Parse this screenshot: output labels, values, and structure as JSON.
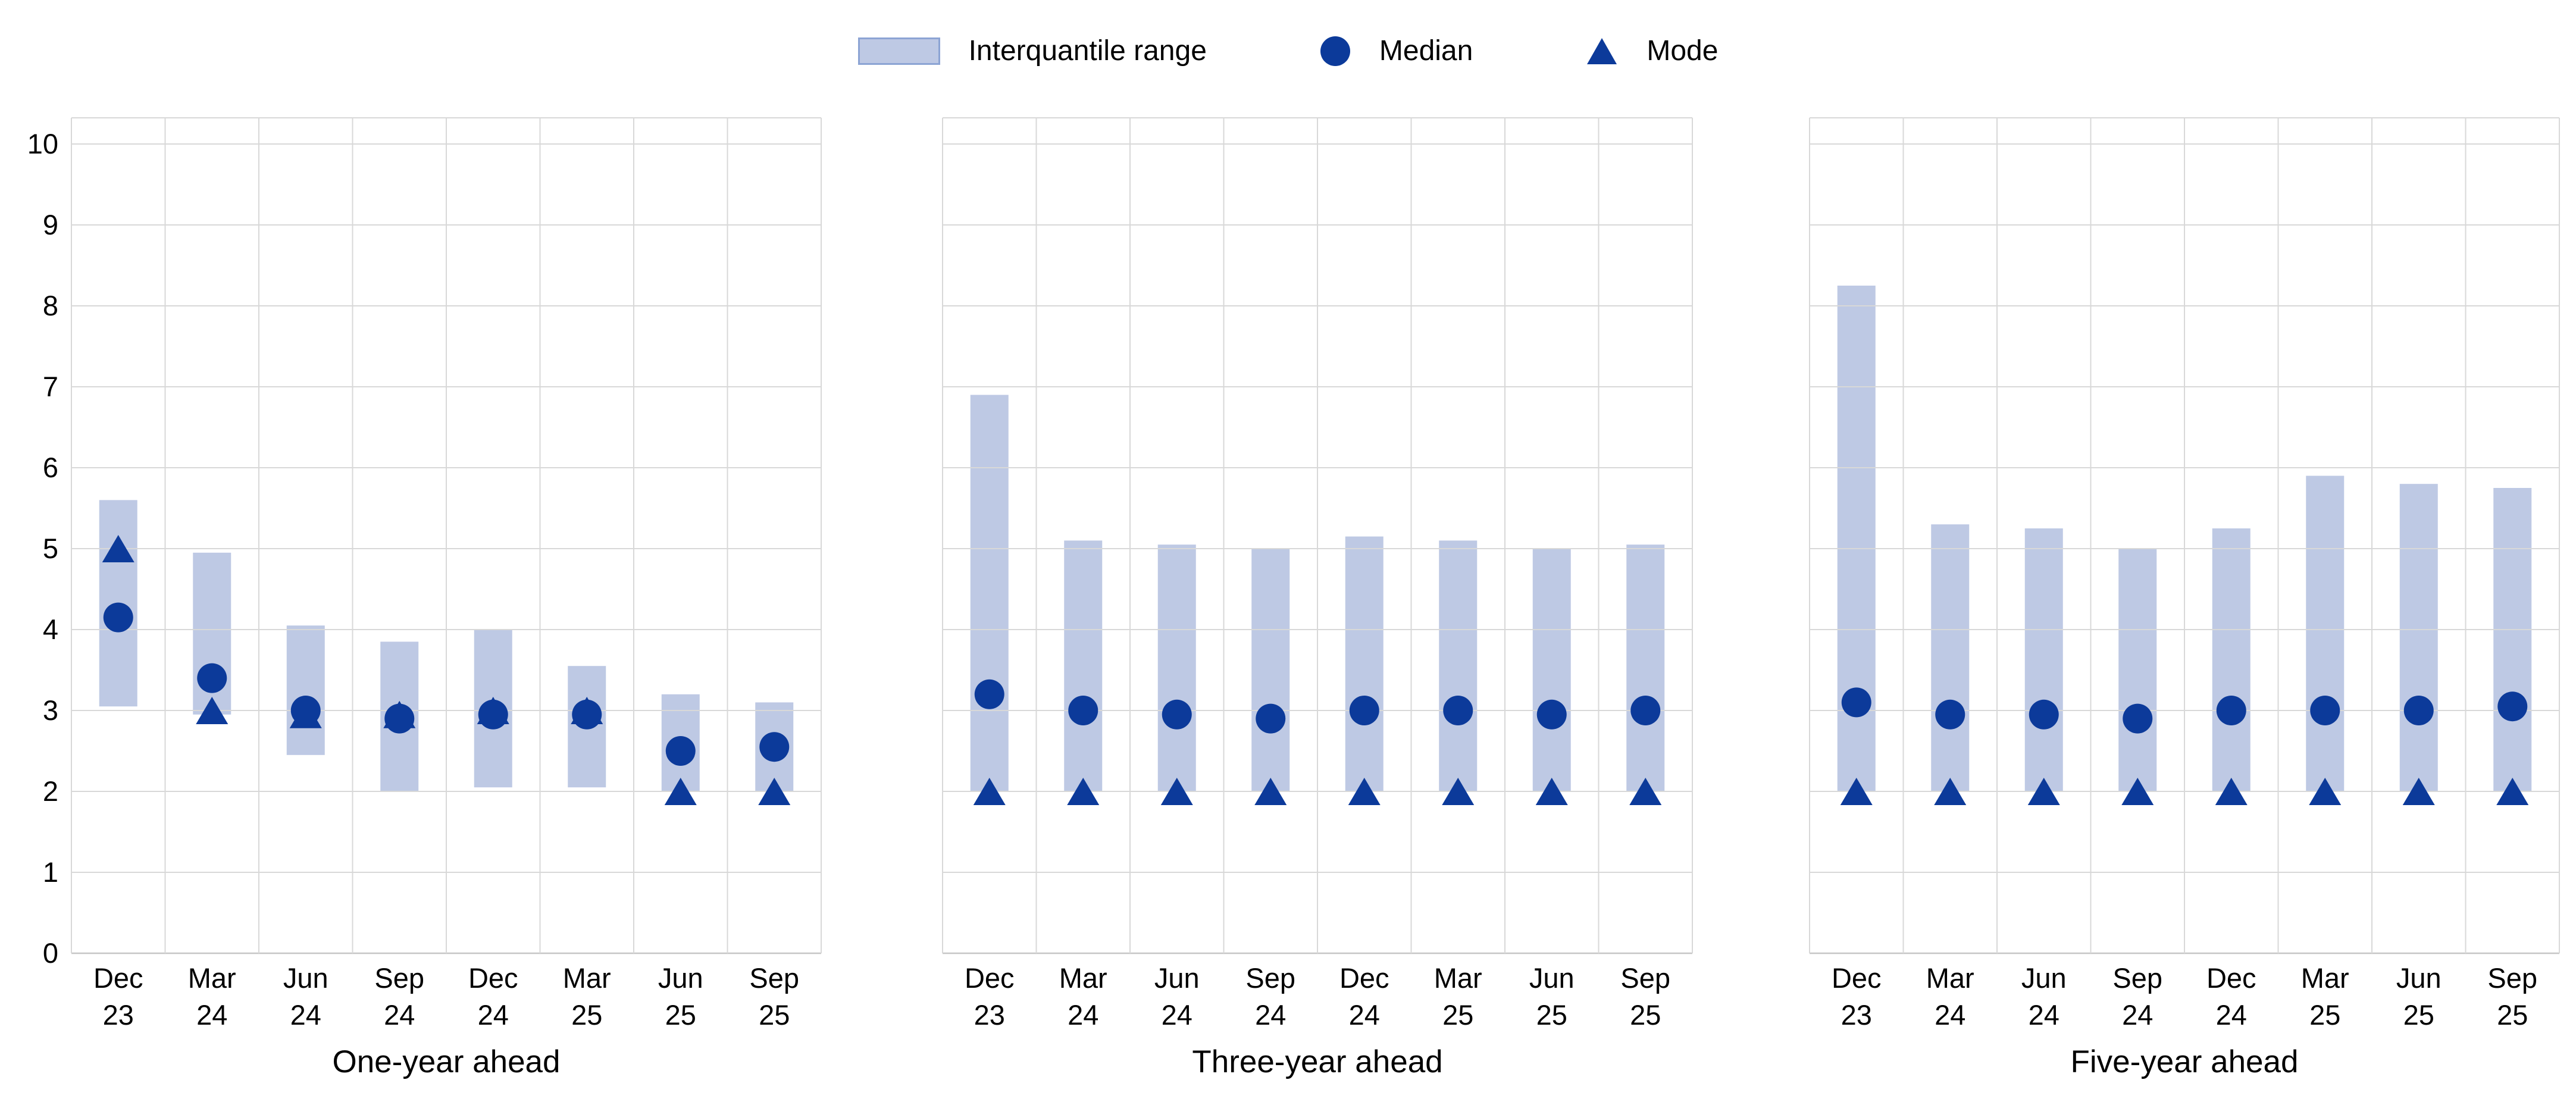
{
  "legend": {
    "items": [
      {
        "label": "Interquantile range",
        "marker": "bar-swatch"
      },
      {
        "label": "Median",
        "marker": "circle"
      },
      {
        "label": "Mode",
        "marker": "triangle"
      }
    ]
  },
  "colors": {
    "bar_fill": "#bec9e4",
    "swatch_border": "#8ca4d4",
    "marker_navy": "#0c3a9a",
    "gridline": "#d8d8d8",
    "zero_line": "#c6c6c6",
    "text": "#000000"
  },
  "y_axis": {
    "min": 0,
    "max": 10,
    "tick_labels": [
      "0",
      "1",
      "2",
      "3",
      "4",
      "5",
      "6",
      "7",
      "8",
      "9",
      "10"
    ]
  },
  "chart_data": [
    {
      "type": "bar",
      "title": "One-year ahead",
      "categories": [
        "Dec 23",
        "Mar 24",
        "Jun 24",
        "Sep 24",
        "Dec 24",
        "Mar 25",
        "Jun 25",
        "Sep 25"
      ],
      "ylim": [
        0,
        10
      ],
      "grid": true,
      "legend_position": "top-center",
      "series": [
        {
          "name": "Interquantile range",
          "type": "range_bar",
          "low": [
            3.05,
            2.95,
            2.45,
            2.0,
            2.05,
            2.05,
            2.0,
            2.0
          ],
          "high": [
            5.6,
            4.95,
            4.05,
            3.85,
            4.0,
            3.55,
            3.2,
            3.1
          ]
        },
        {
          "name": "Median",
          "type": "point_circle",
          "values": [
            4.15,
            3.4,
            3.0,
            2.9,
            2.95,
            2.95,
            2.5,
            2.55
          ]
        },
        {
          "name": "Mode",
          "type": "point_triangle",
          "values": [
            5.0,
            3.0,
            2.95,
            2.95,
            3.0,
            3.0,
            2.0,
            2.0
          ]
        }
      ]
    },
    {
      "type": "bar",
      "title": "Three-year ahead",
      "categories": [
        "Dec 23",
        "Mar 24",
        "Jun 24",
        "Sep 24",
        "Dec 24",
        "Mar 25",
        "Jun 25",
        "Sep 25"
      ],
      "ylim": [
        0,
        10
      ],
      "grid": true,
      "series": [
        {
          "name": "Interquantile range",
          "type": "range_bar",
          "low": [
            2.0,
            2.0,
            2.0,
            2.0,
            2.0,
            2.0,
            2.0,
            2.0
          ],
          "high": [
            6.9,
            5.1,
            5.05,
            5.0,
            5.15,
            5.1,
            5.0,
            5.05
          ]
        },
        {
          "name": "Median",
          "type": "point_circle",
          "values": [
            3.2,
            3.0,
            2.95,
            2.9,
            3.0,
            3.0,
            2.95,
            3.0
          ]
        },
        {
          "name": "Mode",
          "type": "point_triangle",
          "values": [
            2.0,
            2.0,
            2.0,
            2.0,
            2.0,
            2.0,
            2.0,
            2.0
          ]
        }
      ]
    },
    {
      "type": "bar",
      "title": "Five-year ahead",
      "categories": [
        "Dec 23",
        "Mar 24",
        "Jun 24",
        "Sep 24",
        "Dec 24",
        "Mar 25",
        "Jun 25",
        "Sep 25"
      ],
      "ylim": [
        0,
        10
      ],
      "grid": true,
      "series": [
        {
          "name": "Interquantile range",
          "type": "range_bar",
          "low": [
            2.0,
            2.0,
            2.0,
            2.0,
            2.0,
            2.0,
            2.0,
            2.0
          ],
          "high": [
            8.25,
            5.3,
            5.25,
            5.0,
            5.25,
            5.9,
            5.8,
            5.75
          ]
        },
        {
          "name": "Median",
          "type": "point_circle",
          "values": [
            3.1,
            2.95,
            2.95,
            2.9,
            3.0,
            3.0,
            3.0,
            3.05
          ]
        },
        {
          "name": "Mode",
          "type": "point_triangle",
          "values": [
            2.0,
            2.0,
            2.0,
            2.0,
            2.0,
            2.0,
            2.0,
            2.0
          ]
        }
      ]
    }
  ]
}
